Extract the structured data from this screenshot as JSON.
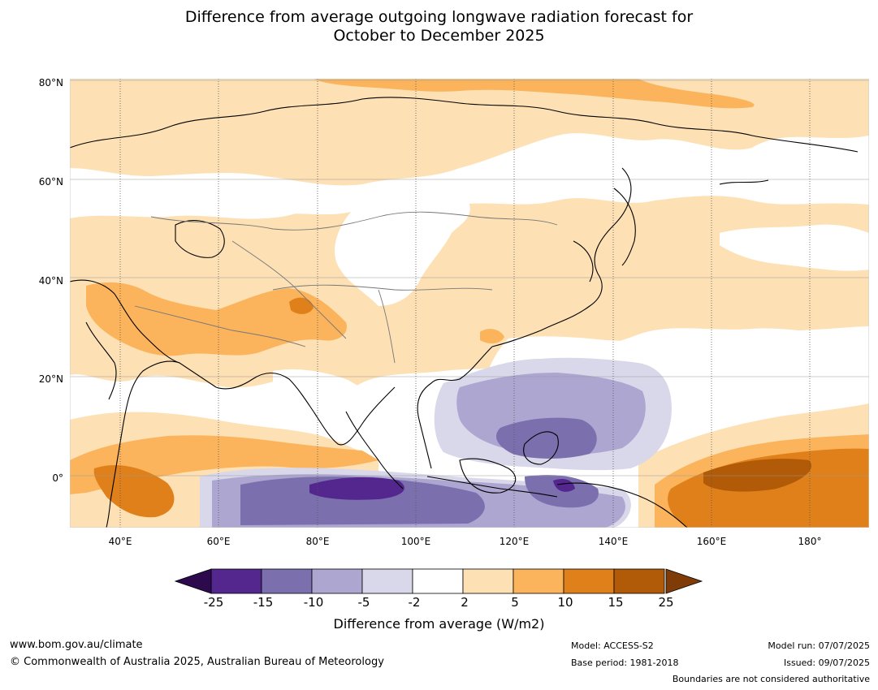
{
  "title_line1": "Difference from average outgoing longwave radiation forecast for",
  "title_line2": "October to December 2025",
  "map": {
    "lat_labels": [
      "80°N",
      "60°N",
      "40°N",
      "20°N",
      "0°"
    ],
    "lon_labels": [
      "40°E",
      "60°E",
      "80°E",
      "100°E",
      "120°E",
      "140°E",
      "160°E",
      "180°"
    ]
  },
  "colorbar": {
    "ticks": [
      "-25",
      "-15",
      "-10",
      "-5",
      "-2",
      "2",
      "5",
      "10",
      "15",
      "25"
    ],
    "colors": [
      "#2d0a4e",
      "#54278f",
      "#7b6fad",
      "#aca6d0",
      "#d9d8eb",
      "#ffffff",
      "#fde0b4",
      "#fbb45c",
      "#e0801a",
      "#b15a08",
      "#7f3b08"
    ],
    "label": "Difference from average (W/m2)"
  },
  "footer": {
    "website": "www.bom.gov.au/climate",
    "copyright": "© Commonwealth of Australia 2025, Australian Bureau of Meteorology",
    "model": "Model: ACCESS-S2",
    "base_period": "Base period: 1981-2018",
    "model_run": "Model run: 07/07/2025",
    "issued": "Issued: 09/07/2025",
    "disclaimer": "Boundaries are not considered authoritative"
  }
}
